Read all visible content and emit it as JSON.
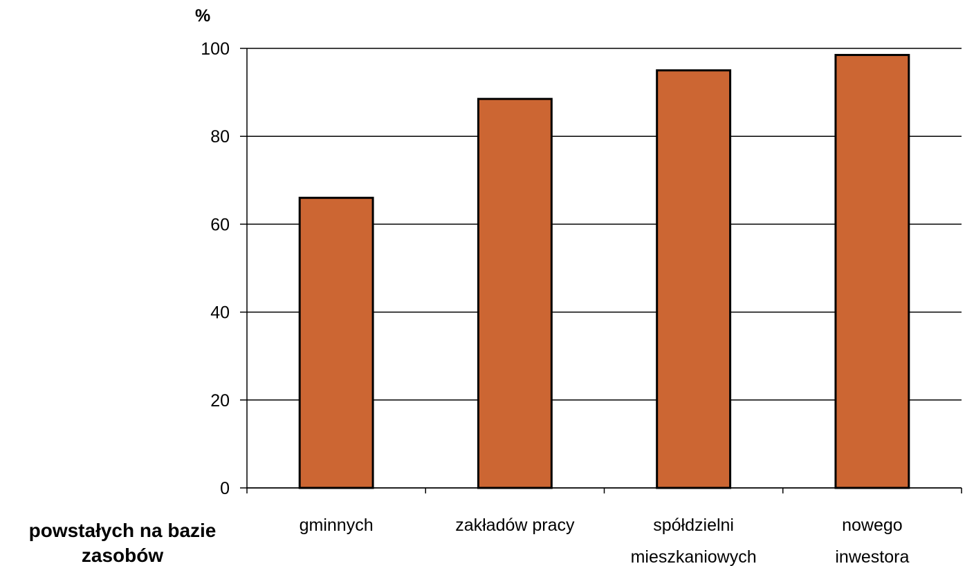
{
  "chart_data": {
    "type": "bar",
    "categories": [
      [
        "gminnych"
      ],
      [
        "zakładów pracy"
      ],
      [
        "spółdzielni",
        "mieszkaniowych"
      ],
      [
        "nowego",
        "inwestora"
      ]
    ],
    "values": [
      66,
      88.5,
      95,
      98.5
    ],
    "ylabel": "%",
    "x_prefix_label": [
      "powstałych na bazie",
      "zasobów"
    ],
    "ylim": [
      0,
      100
    ],
    "yticks": [
      0,
      20,
      40,
      60,
      80,
      100
    ],
    "grid": true,
    "colors": {
      "bar": "#CC6633",
      "bar_stroke": "#000000"
    }
  }
}
